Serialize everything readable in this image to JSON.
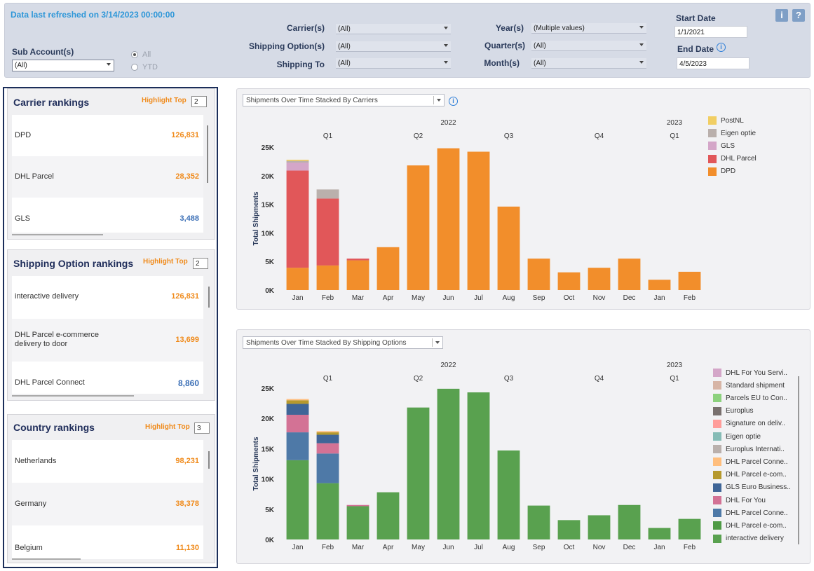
{
  "filters": {
    "refreshed": "Data last refreshed on 3/14/2023 00:00:00",
    "sub_account_label": "Sub Account(s)",
    "sub_account_value": "(All)",
    "radio_all": "All",
    "radio_ytd": "YTD",
    "carrier_label": "Carrier(s)",
    "carrier_value": "(All)",
    "shipping_option_label": "Shipping Option(s)",
    "shipping_option_value": "(All)",
    "shipping_to_label": "Shipping To",
    "shipping_to_value": "(All)",
    "year_label": "Year(s)",
    "year_value": "(Multiple values)",
    "quarter_label": "Quarter(s)",
    "quarter_value": "(All)",
    "month_label": "Month(s)",
    "month_value": "(All)",
    "start_date_label": "Start Date",
    "start_date_value": "1/1/2021",
    "end_date_label": "End Date",
    "end_date_value": "4/5/2023",
    "info_button": "i",
    "help_button": "?"
  },
  "rankings": {
    "highlight_label": "Highlight Top",
    "carrier": {
      "title": "Carrier rankings",
      "top_value": "2",
      "items": [
        {
          "name": "DPD",
          "value": "126,831",
          "color": "#f08a1a"
        },
        {
          "name": "DHL Parcel",
          "value": "28,352",
          "color": "#f08a1a"
        },
        {
          "name": "GLS",
          "value": "3,488",
          "color": "#3b6fb6"
        }
      ]
    },
    "shipping_option": {
      "title": "Shipping Option  rankings",
      "top_value": "2",
      "items": [
        {
          "name": "interactive delivery",
          "value": "126,831",
          "color": "#f08a1a"
        },
        {
          "name": "DHL Parcel e-commerce delivery to door",
          "value": "13,699",
          "color": "#f08a1a"
        },
        {
          "name": "DHL Parcel Connect",
          "value": "8,860",
          "color": "#3b6fb6"
        }
      ]
    },
    "country": {
      "title": "Country rankings",
      "top_value": "3",
      "items": [
        {
          "name": "Netherlands",
          "value": "98,231",
          "color": "#f08a1a"
        },
        {
          "name": "Germany",
          "value": "38,378",
          "color": "#f08a1a"
        },
        {
          "name": "Belgium",
          "value": "11,130",
          "color": "#f08a1a"
        }
      ]
    }
  },
  "chart_data": [
    {
      "type": "bar",
      "stacked": true,
      "selector": "Shipments Over Time Stacked By Carriers",
      "ylabel": "Total Shipments",
      "ylim": [
        0,
        25000
      ],
      "yticks": [
        "0K",
        "5K",
        "10K",
        "15K",
        "20K",
        "25K"
      ],
      "year_labels": [
        {
          "label": "2022",
          "at": 5
        },
        {
          "label": "2023",
          "at": 12.5
        }
      ],
      "quarter_labels": [
        {
          "label": "Q1",
          "at": 1
        },
        {
          "label": "Q2",
          "at": 4
        },
        {
          "label": "Q3",
          "at": 7
        },
        {
          "label": "Q4",
          "at": 10
        },
        {
          "label": "Q1",
          "at": 12.5
        }
      ],
      "categories": [
        "Jan",
        "Feb",
        "Mar",
        "Apr",
        "May",
        "Jun",
        "Jul",
        "Aug",
        "Sep",
        "Oct",
        "Nov",
        "Dec",
        "Jan",
        "Feb"
      ],
      "series": [
        {
          "name": "DPD",
          "color": "#f28e2b",
          "values": [
            3900,
            4300,
            5200,
            7500,
            21800,
            24800,
            24200,
            14600,
            5500,
            3100,
            3900,
            5500,
            1800,
            3200
          ]
        },
        {
          "name": "DHL Parcel",
          "color": "#e15759",
          "values": [
            17000,
            11700,
            300,
            0,
            0,
            0,
            0,
            0,
            0,
            0,
            0,
            0,
            0,
            0
          ]
        },
        {
          "name": "GLS",
          "color": "#d4a6c8",
          "values": [
            1400,
            0,
            0,
            0,
            0,
            0,
            0,
            0,
            0,
            0,
            0,
            0,
            0,
            0
          ]
        },
        {
          "name": "Eigen optie",
          "color": "#bab0ac",
          "values": [
            300,
            1600,
            0,
            0,
            0,
            0,
            0,
            0,
            0,
            0,
            0,
            0,
            0,
            0
          ]
        },
        {
          "name": "PostNL",
          "color": "#f1ce63",
          "values": [
            200,
            0,
            0,
            0,
            0,
            0,
            0,
            0,
            0,
            0,
            0,
            0,
            0,
            0
          ]
        }
      ]
    },
    {
      "type": "bar",
      "stacked": true,
      "selector": "Shipments Over Time Stacked By Shipping Options",
      "ylabel": "Total Shipments",
      "ylim": [
        0,
        25000
      ],
      "yticks": [
        "0K",
        "5K",
        "10K",
        "15K",
        "20K",
        "25K"
      ],
      "year_labels": [
        {
          "label": "2022",
          "at": 5
        },
        {
          "label": "2023",
          "at": 12.5
        }
      ],
      "quarter_labels": [
        {
          "label": "Q1",
          "at": 1
        },
        {
          "label": "Q2",
          "at": 4
        },
        {
          "label": "Q3",
          "at": 7
        },
        {
          "label": "Q4",
          "at": 10
        },
        {
          "label": "Q1",
          "at": 12.5
        }
      ],
      "categories": [
        "Jan",
        "Feb",
        "Mar",
        "Apr",
        "May",
        "Jun",
        "Jul",
        "Aug",
        "Sep",
        "Oct",
        "Nov",
        "Dec",
        "Jan",
        "Feb"
      ],
      "series": [
        {
          "name": "interactive delivery",
          "color": "#59a14f",
          "values": [
            13100,
            9300,
            5500,
            7800,
            21800,
            24900,
            24300,
            14700,
            5600,
            3200,
            4000,
            5700,
            1900,
            3400
          ]
        },
        {
          "name": "DHL Parcel e-com..",
          "color": "#4e9a45",
          "values": [
            0,
            0,
            0,
            0,
            0,
            0,
            0,
            0,
            0,
            0,
            0,
            0,
            0,
            0
          ]
        },
        {
          "name": "DHL Parcel Conne..",
          "color": "#4e79a7",
          "values": [
            4600,
            4900,
            0,
            0,
            0,
            0,
            0,
            0,
            0,
            0,
            0,
            0,
            0,
            0
          ]
        },
        {
          "name": "DHL For You",
          "color": "#d37295",
          "values": [
            2900,
            1700,
            200,
            0,
            0,
            0,
            0,
            0,
            0,
            0,
            0,
            0,
            0,
            0
          ]
        },
        {
          "name": "GLS Euro Business..",
          "color": "#3f6597",
          "values": [
            1800,
            1400,
            0,
            0,
            0,
            0,
            0,
            0,
            0,
            0,
            0,
            0,
            0,
            0
          ]
        },
        {
          "name": "DHL Parcel e-com..",
          "color": "#b6992d",
          "values": [
            600,
            400,
            0,
            0,
            0,
            0,
            0,
            0,
            0,
            0,
            0,
            0,
            0,
            0
          ]
        },
        {
          "name": "DHL Parcel Conne..",
          "color": "#ffbe7d",
          "values": [
            200,
            200,
            0,
            0,
            0,
            0,
            0,
            0,
            0,
            0,
            0,
            0,
            0,
            0
          ]
        },
        {
          "name": "Europlus Internati..",
          "color": "#bab0ac",
          "values": [
            0,
            0,
            0,
            0,
            0,
            0,
            0,
            0,
            0,
            0,
            0,
            0,
            0,
            0
          ]
        },
        {
          "name": "Eigen optie",
          "color": "#86bcb6",
          "values": [
            0,
            0,
            0,
            0,
            0,
            0,
            0,
            0,
            0,
            0,
            0,
            0,
            0,
            0
          ]
        },
        {
          "name": "Signature on deliv..",
          "color": "#ff9d9a",
          "values": [
            0,
            0,
            0,
            0,
            0,
            0,
            0,
            0,
            0,
            0,
            0,
            0,
            0,
            0
          ]
        },
        {
          "name": "Europlus",
          "color": "#79706e",
          "values": [
            0,
            0,
            0,
            0,
            0,
            0,
            0,
            0,
            0,
            0,
            0,
            0,
            0,
            0
          ]
        },
        {
          "name": "Parcels EU to Con..",
          "color": "#8cd17d",
          "values": [
            0,
            0,
            0,
            0,
            0,
            0,
            0,
            0,
            0,
            0,
            0,
            0,
            0,
            0
          ]
        },
        {
          "name": "Standard shipment",
          "color": "#d7b5a6",
          "values": [
            0,
            0,
            0,
            0,
            0,
            0,
            0,
            0,
            0,
            0,
            0,
            0,
            0,
            0
          ]
        },
        {
          "name": "DHL For You Servi..",
          "color": "#d4a6c8",
          "values": [
            0,
            0,
            0,
            0,
            0,
            0,
            0,
            0,
            0,
            0,
            0,
            0,
            0,
            0
          ]
        }
      ]
    }
  ]
}
